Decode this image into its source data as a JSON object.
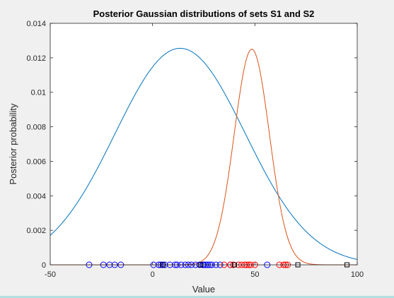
{
  "chart_data": {
    "type": "line",
    "title": "Posterior Gaussian distributions of sets S1 and S2",
    "xlabel": "Value",
    "ylabel": "Posterior probability",
    "xlim": [
      -50,
      100
    ],
    "ylim": [
      0,
      0.014
    ],
    "xticks": [
      -50,
      0,
      50,
      100
    ],
    "yticks": [
      0,
      0.002,
      0.004,
      0.006,
      0.008,
      0.01,
      0.012,
      0.014
    ],
    "xtick_labels": [
      "-50",
      "0",
      "50",
      "100"
    ],
    "ytick_labels": [
      "0",
      "0.002",
      "0.004",
      "0.006",
      "0.008",
      "0.01",
      "0.012",
      "0.014"
    ],
    "grid": false,
    "series": [
      {
        "kind": "gaussian",
        "mean": 13.5,
        "peak": 0.01255,
        "std": 31.8,
        "color": "#0072bd"
      },
      {
        "kind": "gaussian",
        "mean": 48.5,
        "peak": 0.0125,
        "std": 8.6,
        "color": "#d95319"
      }
    ],
    "markers": [
      {
        "color": "#0000ff",
        "symbol": "circle",
        "x": [
          -31,
          -24,
          -21,
          -18.5,
          -15.5,
          0.5,
          3,
          4,
          5,
          6,
          8.5,
          11,
          12,
          14,
          16,
          17.5,
          19,
          21,
          23,
          24.5,
          25,
          26,
          27,
          28,
          29,
          31,
          33,
          38,
          56
        ]
      },
      {
        "color": "#ff0000",
        "symbol": "circle",
        "x": [
          35,
          38,
          39.5,
          42,
          43.5,
          45,
          46,
          47,
          48,
          50,
          62,
          64,
          65,
          66
        ]
      },
      {
        "color": "#000000",
        "symbol": "square",
        "x": [
          5,
          23.5,
          40,
          71,
          95
        ]
      }
    ]
  }
}
